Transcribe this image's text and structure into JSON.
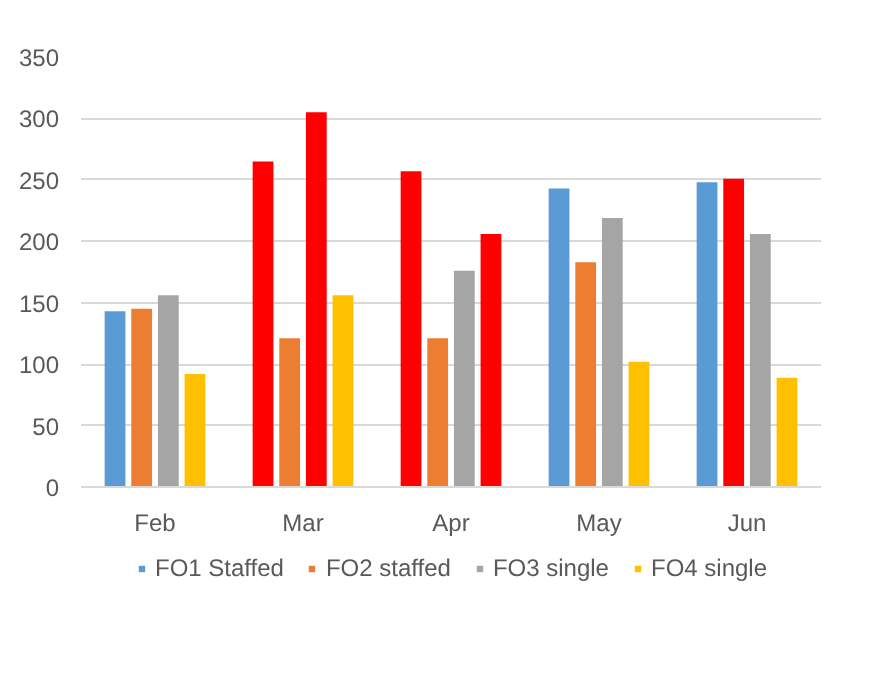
{
  "chart_data": {
    "type": "bar",
    "categories": [
      "Feb",
      "Mar",
      "Apr",
      "May",
      "Jun"
    ],
    "series": [
      {
        "name": "FO1 Staffed",
        "color": "#5b9bd5",
        "colors": [
          "#5b9bd5",
          "#ff0000",
          "#ff0000",
          "#5b9bd5",
          "#5b9bd5"
        ],
        "values": [
          143,
          265,
          257,
          243,
          248
        ]
      },
      {
        "name": "FO2 staffed",
        "color": "#ed7d31",
        "colors": [
          "#ed7d31",
          "#ed7d31",
          "#ed7d31",
          "#ed7d31",
          "#ff0000"
        ],
        "values": [
          145,
          121,
          121,
          183,
          251
        ]
      },
      {
        "name": "FO3 single",
        "color": "#a5a5a5",
        "colors": [
          "#a5a5a5",
          "#ff0000",
          "#a5a5a5",
          "#a5a5a5",
          "#a5a5a5"
        ],
        "values": [
          156,
          305,
          176,
          219,
          206
        ]
      },
      {
        "name": "FO4 single",
        "color": "#ffc000",
        "colors": [
          "#ffc000",
          "#ffc000",
          "#ff0000",
          "#ffc000",
          "#ffc000"
        ],
        "values": [
          92,
          156,
          206,
          102,
          89
        ]
      }
    ],
    "ylim": [
      0,
      350
    ],
    "yticks": [
      0,
      50,
      100,
      150,
      200,
      250,
      300,
      350
    ],
    "grid": "y",
    "legend": "bottom"
  }
}
